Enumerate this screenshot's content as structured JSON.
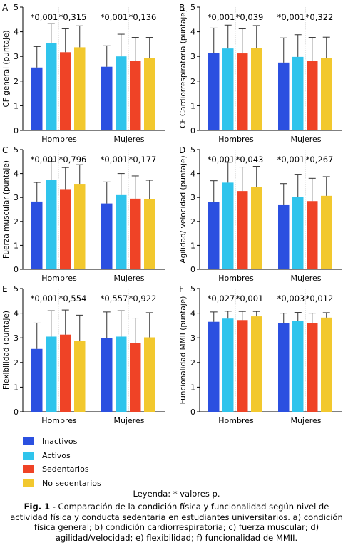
{
  "colors": {
    "inactivos": "#2b50e0",
    "activos": "#2fc4ec",
    "sedentarios": "#ef4326",
    "no_sedentarios": "#f2c82e"
  },
  "legend": {
    "items": [
      {
        "label": "Inactivos",
        "color": "#2b50e0"
      },
      {
        "label": "Activos",
        "color": "#2fc4ec"
      },
      {
        "label": "Sedentarios",
        "color": "#ef4326"
      },
      {
        "label": "No sedentarios",
        "color": "#f2c82e"
      }
    ],
    "note": "Leyenda: * valores p."
  },
  "caption": {
    "label": "Fig. 1",
    "text": " - Comparación de la condición física y funcionalidad según nivel de actividad física y conducta sedentaria en estudiantes universitarios. a) condición física general; b) condición cardiorrespiratoria; c) fuerza muscular; d) agilidad/velocidad; e) flexibilidad; f) funcionalidad de MMII."
  },
  "chart_data": [
    {
      "type": "bar",
      "letter": "A",
      "ylabel": "CF general (puntaje)",
      "categories": [
        "Hombres",
        "Mujeres"
      ],
      "ylim": [
        0,
        5
      ],
      "yticks": [
        0,
        1,
        2,
        3,
        4,
        5
      ],
      "series": [
        {
          "name": "Inactivos",
          "values": [
            2.55,
            2.58
          ],
          "errors": [
            0.85,
            0.85
          ]
        },
        {
          "name": "Activos",
          "values": [
            3.55,
            3.0
          ],
          "errors": [
            0.78,
            0.9
          ]
        },
        {
          "name": "Sedentarios",
          "values": [
            3.17,
            2.82
          ],
          "errors": [
            0.95,
            0.95
          ]
        },
        {
          "name": "No sedentarios",
          "values": [
            3.37,
            2.92
          ],
          "errors": [
            0.87,
            0.85
          ]
        }
      ],
      "p_values": [
        [
          "*0,001",
          "*0,315"
        ],
        [
          "*0,001",
          "*0,136"
        ]
      ]
    },
    {
      "type": "bar",
      "letter": "B",
      "ylabel": "CF Cardiorrespiratoria (puntaje)",
      "categories": [
        "Hombres",
        "Mujeres"
      ],
      "ylim": [
        0,
        5
      ],
      "yticks": [
        0,
        1,
        2,
        3,
        4,
        5
      ],
      "series": [
        {
          "name": "Inactivos",
          "values": [
            3.15,
            2.75
          ],
          "errors": [
            1.0,
            1.0
          ]
        },
        {
          "name": "Activos",
          "values": [
            3.32,
            2.98
          ],
          "errors": [
            0.95,
            0.9
          ]
        },
        {
          "name": "Sedentarios",
          "values": [
            3.12,
            2.82
          ],
          "errors": [
            1.0,
            0.95
          ]
        },
        {
          "name": "No sedentarios",
          "values": [
            3.35,
            2.93
          ],
          "errors": [
            0.9,
            0.85
          ]
        }
      ],
      "p_values": [
        [
          "*0,001",
          "*0,039"
        ],
        [
          "*0,001",
          "*0,322"
        ]
      ]
    },
    {
      "type": "bar",
      "letter": "C",
      "ylabel": "Fuerza muscular (puntaje)",
      "categories": [
        "Hombres",
        "Mujeres"
      ],
      "ylim": [
        0,
        5
      ],
      "yticks": [
        0,
        1,
        2,
        3,
        4,
        5
      ],
      "series": [
        {
          "name": "Inactivos",
          "values": [
            2.83,
            2.75
          ],
          "errors": [
            0.8,
            0.9
          ]
        },
        {
          "name": "Activos",
          "values": [
            3.72,
            3.1
          ],
          "errors": [
            0.78,
            0.9
          ]
        },
        {
          "name": "Sedentarios",
          "values": [
            3.35,
            2.95
          ],
          "errors": [
            0.9,
            0.95
          ]
        },
        {
          "name": "No sedentarios",
          "values": [
            3.57,
            2.92
          ],
          "errors": [
            0.8,
            0.8
          ]
        }
      ],
      "p_values": [
        [
          "*0,001",
          "*0,796"
        ],
        [
          "*0,001",
          "*0,177"
        ]
      ]
    },
    {
      "type": "bar",
      "letter": "D",
      "ylabel": "Agilidad/ velocidad (puntaje)",
      "categories": [
        "Hombres",
        "Mujeres"
      ],
      "ylim": [
        0,
        5
      ],
      "yticks": [
        0,
        1,
        2,
        3,
        4,
        5
      ],
      "series": [
        {
          "name": "Inactivos",
          "values": [
            2.8,
            2.68
          ],
          "errors": [
            0.9,
            0.9
          ]
        },
        {
          "name": "Activos",
          "values": [
            3.62,
            3.02
          ],
          "errors": [
            0.85,
            0.95
          ]
        },
        {
          "name": "Sedentarios",
          "values": [
            3.27,
            2.85
          ],
          "errors": [
            1.0,
            0.95
          ]
        },
        {
          "name": "No sedentarios",
          "values": [
            3.45,
            3.07
          ],
          "errors": [
            0.85,
            0.8
          ]
        }
      ],
      "p_values": [
        [
          "*0,001",
          "*0,043"
        ],
        [
          "*0,001",
          "*0,267"
        ]
      ]
    },
    {
      "type": "bar",
      "letter": "E",
      "ylabel": "Flexibilidad (puntaje)",
      "categories": [
        "Hombres",
        "Mujeres"
      ],
      "ylim": [
        0,
        5
      ],
      "yticks": [
        0,
        1,
        2,
        3,
        4,
        5
      ],
      "series": [
        {
          "name": "Inactivos",
          "values": [
            2.55,
            3.0
          ],
          "errors": [
            1.05,
            1.05
          ]
        },
        {
          "name": "Activos",
          "values": [
            3.05,
            3.05
          ],
          "errors": [
            1.05,
            1.05
          ]
        },
        {
          "name": "Sedentarios",
          "values": [
            3.13,
            2.8
          ],
          "errors": [
            1.0,
            1.0
          ]
        },
        {
          "name": "No sedentarios",
          "values": [
            2.87,
            3.02
          ],
          "errors": [
            1.05,
            1.0
          ]
        }
      ],
      "p_values": [
        [
          "*0,001",
          "*0,554"
        ],
        [
          "*0,557",
          "*0,922"
        ]
      ]
    },
    {
      "type": "bar",
      "letter": "F",
      "ylabel": "Funcionalidad MMII (puntaje)",
      "categories": [
        "Hombres",
        "Mujeres"
      ],
      "ylim": [
        0,
        5
      ],
      "yticks": [
        0,
        1,
        2,
        3,
        4,
        5
      ],
      "series": [
        {
          "name": "Inactivos",
          "values": [
            3.65,
            3.6
          ],
          "errors": [
            0.4,
            0.4
          ]
        },
        {
          "name": "Activos",
          "values": [
            3.78,
            3.68
          ],
          "errors": [
            0.3,
            0.35
          ]
        },
        {
          "name": "Sedentarios",
          "values": [
            3.72,
            3.6
          ],
          "errors": [
            0.35,
            0.4
          ]
        },
        {
          "name": "No sedentarios",
          "values": [
            3.87,
            3.82
          ],
          "errors": [
            0.2,
            0.2
          ]
        }
      ],
      "p_values": [
        [
          "*0,027",
          "*0,001"
        ],
        [
          "*0,003",
          "*0,012"
        ]
      ]
    }
  ]
}
